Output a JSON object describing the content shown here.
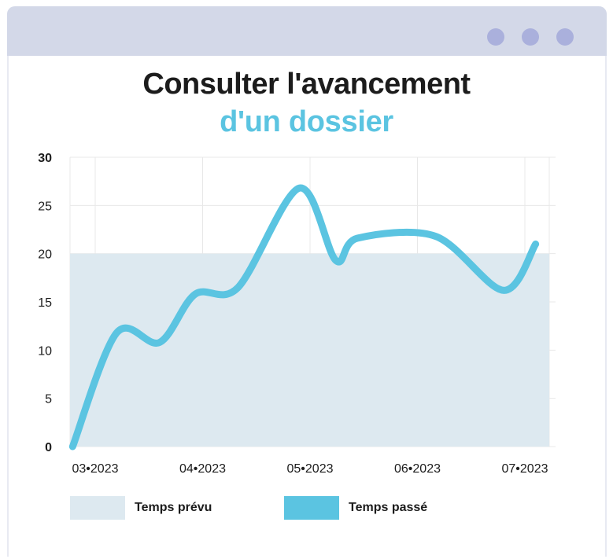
{
  "window": {
    "buttons": [
      "window-dot-1",
      "window-dot-2",
      "window-dot-3"
    ]
  },
  "title": {
    "line1": "Consulter l'avancement",
    "line2": "d'un dossier",
    "line2_color": "#5bc4e1"
  },
  "colors": {
    "window_bar": "#d3d8e8",
    "window_dots": "#aab0dc",
    "planned_area": "#dde9f0",
    "spent_line": "#5bc4e1",
    "grid": "#e8e8e8"
  },
  "chart_data": {
    "type": "line",
    "ylim": [
      0,
      30
    ],
    "yticks": [
      0,
      5,
      10,
      15,
      20,
      25,
      30
    ],
    "xlim": [
      0,
      4.5
    ],
    "xticks": [
      {
        "x": 0,
        "label": "03•2023"
      },
      {
        "x": 1,
        "label": "04•2023"
      },
      {
        "x": 2,
        "label": "05•2023"
      },
      {
        "x": 3,
        "label": "06•2023"
      },
      {
        "x": 4,
        "label": "07•2023"
      }
    ],
    "grid": true,
    "legend_position": "bottom",
    "series": [
      {
        "name": "Temps prévu",
        "kind": "area",
        "color": "#dde9f0",
        "points": [
          [
            -0.24,
            20
          ],
          [
            4.3,
            20
          ]
        ]
      },
      {
        "name": "Temps passé",
        "kind": "line",
        "color": "#5bc4e1",
        "points": [
          [
            -0.21,
            0
          ],
          [
            0.2,
            11.8
          ],
          [
            0.6,
            10.8
          ],
          [
            0.93,
            15.8
          ],
          [
            1.33,
            16.5
          ],
          [
            1.9,
            26.8
          ],
          [
            2.24,
            19.3
          ],
          [
            2.44,
            21.6
          ],
          [
            3.17,
            21.8
          ],
          [
            3.8,
            16.2
          ],
          [
            4.1,
            21.0
          ]
        ]
      }
    ]
  },
  "legend": [
    {
      "label": "Temps prévu",
      "color": "#dde9f0"
    },
    {
      "label": "Temps passé",
      "color": "#5bc4e1"
    }
  ]
}
